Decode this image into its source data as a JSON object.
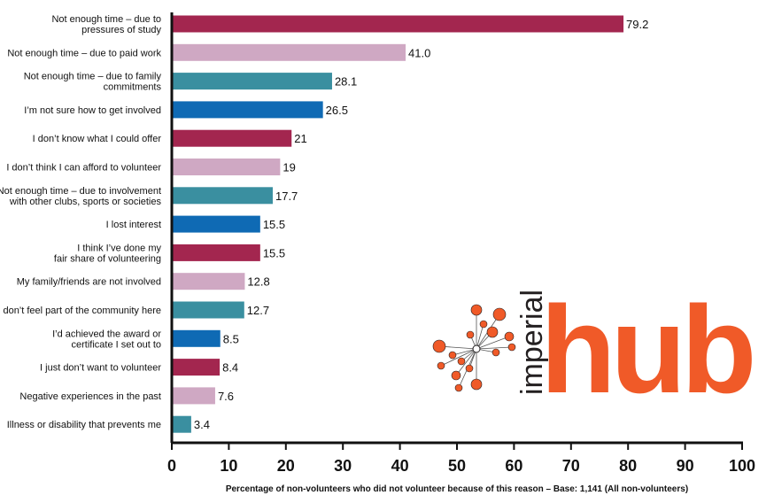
{
  "chart_data": {
    "type": "bar",
    "orientation": "horizontal",
    "categories": [
      [
        "Not enough time – due to",
        "pressures of study"
      ],
      [
        "Not enough time – due to paid work"
      ],
      [
        "Not enough time – due to family",
        "commitments"
      ],
      [
        "I’m not sure how to get involved"
      ],
      [
        "I don’t know what I could offer"
      ],
      [
        "I don’t think I can afford to volunteer"
      ],
      [
        "Not enough time – due to involvement",
        "with other clubs, sports or societies"
      ],
      [
        "I lost interest"
      ],
      [
        "I think I’ve done my",
        "fair share of volunteering"
      ],
      [
        "My family/friends are not involved"
      ],
      [
        "I don’t feel part of the community here"
      ],
      [
        "I’d achieved the award or",
        "certificate I set out to"
      ],
      [
        "I just don’t want to volunteer"
      ],
      [
        "Negative experiences in the past"
      ],
      [
        "Illness or disability that prevents me"
      ]
    ],
    "values": [
      79.2,
      41.0,
      28.1,
      26.5,
      21,
      19,
      17.7,
      15.5,
      15.5,
      12.8,
      12.7,
      8.5,
      8.4,
      7.6,
      3.4
    ],
    "value_labels": [
      "79.2",
      "41.0",
      "28.1",
      "26.5",
      "21",
      "19",
      "17.7",
      "15.5",
      "15.5",
      "12.8",
      "12.7",
      "8.5",
      "8.4",
      "7.6",
      "3.4"
    ],
    "bar_colors": [
      "#a3264f",
      "#cfa8c3",
      "#3a8fa0",
      "#0f6ab4"
    ],
    "xlim": [
      0,
      100
    ],
    "xticks": [
      0,
      10,
      20,
      30,
      40,
      50,
      60,
      70,
      80,
      90,
      100
    ],
    "xlabel": "Percentage of non-volunteers who did not volunteer because of this reason – Base: 1,141 (All non-volunteers)",
    "title": "",
    "ylabel": "",
    "grid": false,
    "legend": "none"
  },
  "logo": {
    "small_text": "imperial",
    "big_text": "hub",
    "accent_color": "#f05a28",
    "dark_color": "#231f20"
  }
}
